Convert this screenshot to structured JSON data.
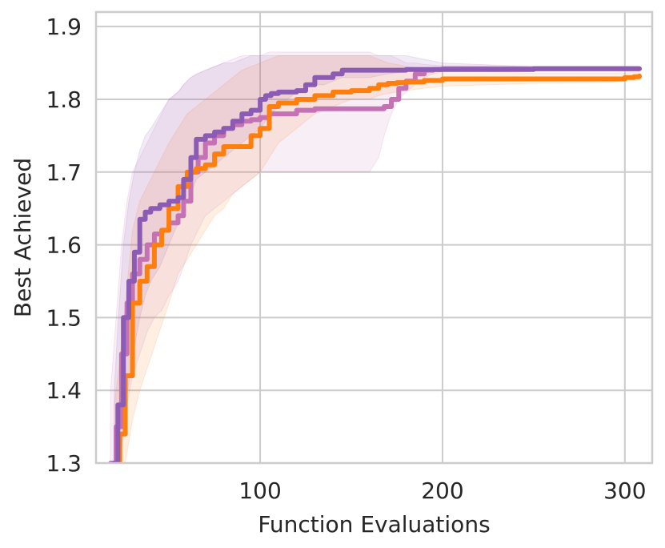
{
  "chart_data": {
    "type": "line",
    "title": "",
    "xlabel": "Function Evaluations",
    "ylabel": "Best Achieved",
    "xlim": [
      10,
      315
    ],
    "ylim": [
      1.3,
      1.92
    ],
    "xticks": [
      100,
      200,
      300
    ],
    "xtick_labels": [
      "100",
      "200",
      "300"
    ],
    "yticks": [
      1.3,
      1.4,
      1.5,
      1.6,
      1.7,
      1.8,
      1.9
    ],
    "ytick_labels": [
      "1.3",
      "1.4",
      "1.5",
      "1.6",
      "1.7",
      "1.8",
      "1.9"
    ],
    "grid": true,
    "legend": "none",
    "series": [
      {
        "name": "purple",
        "color": "#8c5cb4",
        "x": [
          20,
          22,
          25,
          28,
          31,
          34,
          37,
          40,
          45,
          50,
          55,
          58,
          62,
          65,
          70,
          75,
          80,
          85,
          90,
          95,
          100,
          103,
          106,
          110,
          115,
          120,
          125,
          130,
          135,
          140,
          145,
          150,
          160,
          170,
          180,
          190,
          200,
          250,
          300,
          308
        ],
        "y": [
          1.3,
          1.38,
          1.5,
          1.55,
          1.59,
          1.635,
          1.645,
          1.65,
          1.655,
          1.66,
          1.665,
          1.69,
          1.72,
          1.745,
          1.75,
          1.755,
          1.76,
          1.77,
          1.78,
          1.785,
          1.8,
          1.805,
          1.808,
          1.81,
          1.81,
          1.812,
          1.82,
          1.83,
          1.83,
          1.835,
          1.84,
          1.84,
          1.84,
          1.84,
          1.841,
          1.841,
          1.841,
          1.842,
          1.842,
          1.842
        ],
        "lower": [
          1.22,
          1.28,
          1.36,
          1.41,
          1.46,
          1.5,
          1.53,
          1.55,
          1.57,
          1.6,
          1.63,
          1.65,
          1.67,
          1.69,
          1.7,
          1.71,
          1.72,
          1.73,
          1.74,
          1.75,
          1.76,
          1.77,
          1.78,
          1.79,
          1.8,
          1.81,
          1.815,
          1.82,
          1.82,
          1.825,
          1.83,
          1.83,
          1.83,
          1.835,
          1.838,
          1.84,
          1.84,
          1.841,
          1.841,
          1.841
        ],
        "upper": [
          1.4,
          1.49,
          1.6,
          1.66,
          1.7,
          1.73,
          1.75,
          1.76,
          1.78,
          1.8,
          1.81,
          1.82,
          1.83,
          1.835,
          1.84,
          1.845,
          1.85,
          1.85,
          1.855,
          1.86,
          1.86,
          1.86,
          1.86,
          1.86,
          1.86,
          1.86,
          1.86,
          1.86,
          1.86,
          1.86,
          1.86,
          1.86,
          1.86,
          1.86,
          1.86,
          1.855,
          1.85,
          1.845,
          1.845,
          1.845
        ]
      },
      {
        "name": "orange",
        "color": "#ff7f0e",
        "x": [
          20,
          23,
          26,
          30,
          34,
          38,
          42,
          46,
          50,
          55,
          60,
          65,
          70,
          75,
          80,
          85,
          90,
          95,
          100,
          105,
          110,
          120,
          130,
          140,
          150,
          160,
          165,
          170,
          175,
          180,
          190,
          200,
          250,
          290,
          300,
          305,
          308
        ],
        "y": [
          1.3,
          1.34,
          1.42,
          1.52,
          1.55,
          1.57,
          1.6,
          1.62,
          1.65,
          1.68,
          1.7,
          1.705,
          1.71,
          1.725,
          1.735,
          1.735,
          1.735,
          1.75,
          1.76,
          1.79,
          1.795,
          1.8,
          1.805,
          1.81,
          1.812,
          1.815,
          1.82,
          1.822,
          1.823,
          1.824,
          1.826,
          1.828,
          1.828,
          1.828,
          1.83,
          1.831,
          1.832
        ],
        "lower": [
          1.22,
          1.25,
          1.3,
          1.36,
          1.4,
          1.43,
          1.46,
          1.49,
          1.52,
          1.56,
          1.58,
          1.6,
          1.62,
          1.64,
          1.65,
          1.67,
          1.68,
          1.69,
          1.7,
          1.72,
          1.74,
          1.76,
          1.78,
          1.79,
          1.8,
          1.8,
          1.805,
          1.808,
          1.81,
          1.812,
          1.815,
          1.818,
          1.822,
          1.823,
          1.825,
          1.826,
          1.827
        ],
        "upper": [
          1.38,
          1.44,
          1.52,
          1.62,
          1.66,
          1.68,
          1.7,
          1.72,
          1.74,
          1.76,
          1.78,
          1.79,
          1.8,
          1.81,
          1.82,
          1.83,
          1.84,
          1.845,
          1.85,
          1.855,
          1.86,
          1.86,
          1.86,
          1.86,
          1.86,
          1.86,
          1.855,
          1.85,
          1.848,
          1.845,
          1.842,
          1.84,
          1.836,
          1.836,
          1.836,
          1.837,
          1.838
        ]
      },
      {
        "name": "pink",
        "color": "#c472b4",
        "x": [
          18,
          21,
          24,
          27,
          30,
          34,
          38,
          42,
          46,
          50,
          55,
          58,
          62,
          66,
          70,
          75,
          80,
          85,
          90,
          95,
          100,
          105,
          110,
          120,
          130,
          140,
          150,
          160,
          165,
          168,
          172,
          176,
          180,
          185,
          190,
          195,
          200,
          250,
          300,
          308
        ],
        "y": [
          1.3,
          1.35,
          1.45,
          1.52,
          1.56,
          1.58,
          1.6,
          1.615,
          1.62,
          1.63,
          1.64,
          1.66,
          1.7,
          1.72,
          1.74,
          1.75,
          1.76,
          1.765,
          1.77,
          1.772,
          1.775,
          1.78,
          1.78,
          1.785,
          1.787,
          1.787,
          1.787,
          1.787,
          1.787,
          1.79,
          1.8,
          1.815,
          1.825,
          1.835,
          1.84,
          1.841,
          1.842,
          1.842,
          1.842,
          1.842
        ],
        "lower": [
          1.2,
          1.25,
          1.32,
          1.38,
          1.42,
          1.45,
          1.48,
          1.5,
          1.51,
          1.53,
          1.55,
          1.57,
          1.6,
          1.62,
          1.64,
          1.65,
          1.66,
          1.67,
          1.68,
          1.69,
          1.7,
          1.7,
          1.7,
          1.7,
          1.7,
          1.7,
          1.7,
          1.7,
          1.72,
          1.75,
          1.78,
          1.8,
          1.81,
          1.82,
          1.83,
          1.835,
          1.838,
          1.84,
          1.84,
          1.84
        ],
        "upper": [
          1.4,
          1.5,
          1.6,
          1.66,
          1.7,
          1.72,
          1.74,
          1.76,
          1.78,
          1.8,
          1.81,
          1.82,
          1.83,
          1.835,
          1.84,
          1.845,
          1.85,
          1.855,
          1.86,
          1.86,
          1.86,
          1.865,
          1.865,
          1.865,
          1.865,
          1.865,
          1.865,
          1.865,
          1.86,
          1.86,
          1.86,
          1.855,
          1.85,
          1.85,
          1.848,
          1.847,
          1.846,
          1.845,
          1.845,
          1.845
        ]
      }
    ]
  }
}
